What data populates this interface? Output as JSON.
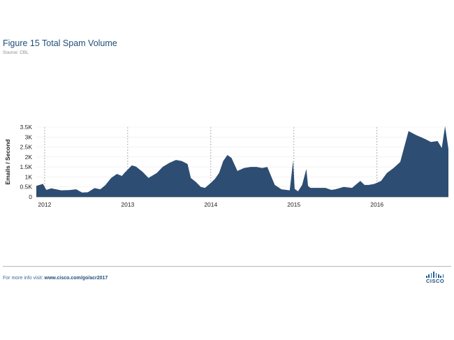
{
  "figure": {
    "title": "Figure 15  Total Spam Volume",
    "source": "Source: CBL"
  },
  "chart_data": {
    "type": "area",
    "ylabel": "Emails / Second",
    "ylim": [
      0,
      3500
    ],
    "yticks": [
      0,
      500,
      1000,
      1500,
      2000,
      2500,
      3000,
      3500
    ],
    "ytick_labels": [
      "0",
      "0.5K",
      "1K",
      "1.5K",
      "2K",
      "2.5K",
      "3K",
      "3.5K"
    ],
    "xlim": [
      2011.9,
      2016.86
    ],
    "xticks": [
      2012,
      2013,
      2014,
      2015,
      2016
    ],
    "xtick_labels": [
      "2012",
      "2013",
      "2014",
      "2015",
      "2016"
    ],
    "grid": "vertical dashed at year ticks",
    "color": "#2e4d72",
    "series": [
      {
        "x": [
          2011.9,
          2011.98,
          2012.02,
          2012.08,
          2012.2,
          2012.3,
          2012.38,
          2012.45,
          2012.52,
          2012.6,
          2012.67,
          2012.73,
          2012.8,
          2012.87,
          2012.93,
          2012.96,
          2013.05,
          2013.1,
          2013.18,
          2013.25,
          2013.35,
          2013.42,
          2013.5,
          2013.58,
          2013.65,
          2013.72,
          2013.76,
          2013.82,
          2013.88,
          2013.93,
          2014.0,
          2014.05,
          2014.1,
          2014.15,
          2014.2,
          2014.25,
          2014.32,
          2014.4,
          2014.48,
          2014.55,
          2014.62,
          2014.68,
          2014.77,
          2014.85,
          2014.95,
          2014.99,
          2015.01,
          2015.05,
          2015.1,
          2015.15,
          2015.17,
          2015.2,
          2015.25,
          2015.3,
          2015.38,
          2015.45,
          2015.5,
          2015.6,
          2015.7,
          2015.8,
          2015.85,
          2015.9,
          2015.97,
          2016.05,
          2016.12,
          2016.2,
          2016.28,
          2016.38,
          2016.47,
          2016.58,
          2016.65,
          2016.73,
          2016.78,
          2016.82,
          2016.86
        ],
        "values": [
          550,
          650,
          350,
          430,
          330,
          340,
          380,
          220,
          230,
          440,
          380,
          580,
          950,
          1150,
          1050,
          1200,
          1580,
          1520,
          1250,
          950,
          1200,
          1500,
          1700,
          1850,
          1800,
          1650,
          950,
          750,
          500,
          450,
          700,
          900,
          1200,
          1800,
          2100,
          1950,
          1300,
          1450,
          1500,
          1500,
          1450,
          1500,
          600,
          380,
          330,
          1800,
          400,
          280,
          600,
          1400,
          550,
          450,
          450,
          450,
          450,
          350,
          380,
          500,
          450,
          800,
          600,
          600,
          650,
          800,
          1200,
          1450,
          1750,
          3300,
          3100,
          2900,
          2750,
          2800,
          2450,
          3550,
          2400
        ]
      }
    ]
  },
  "footer": {
    "prefix": "For more info visit: ",
    "link": "www.cisco.com/go/acr2017",
    "logo_text": "CISCO"
  }
}
